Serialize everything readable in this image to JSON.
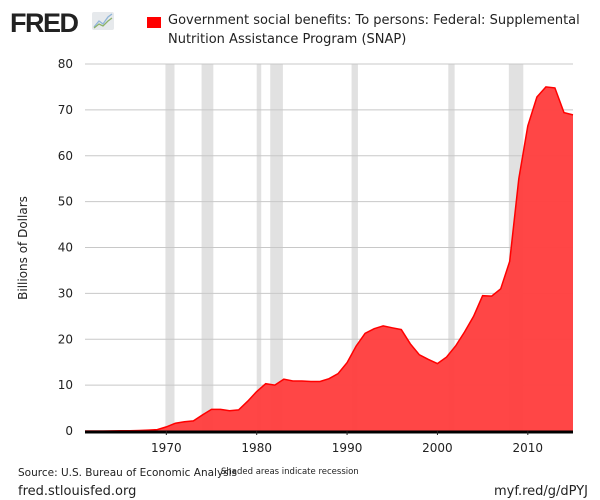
{
  "header": {
    "logo": "FRED",
    "logo_icon": "line-chart-icon"
  },
  "chart_data": {
    "type": "area",
    "series": [
      {
        "name": "Government social benefits: To persons: Federal: Supplemental Nutrition Assistance Program (SNAP)",
        "color": "#ff0000",
        "fill": "#ff4040"
      }
    ],
    "ylabel": "Billions of Dollars",
    "xlabel": "",
    "ylim": [
      0,
      80
    ],
    "xlim": [
      1961,
      2015
    ],
    "yticks": [
      "0",
      "10",
      "20",
      "30",
      "40",
      "50",
      "60",
      "70",
      "80"
    ],
    "xticks": [
      "1970",
      "1980",
      "1990",
      "2000",
      "2010"
    ],
    "grid": true,
    "legend": "top",
    "x": [
      1961,
      1962,
      1963,
      1964,
      1965,
      1966,
      1967,
      1968,
      1969,
      1970,
      1971,
      1972,
      1973,
      1974,
      1975,
      1976,
      1977,
      1978,
      1979,
      1980,
      1981,
      1982,
      1983,
      1984,
      1985,
      1986,
      1987,
      1988,
      1989,
      1990,
      1991,
      1992,
      1993,
      1994,
      1995,
      1996,
      1997,
      1998,
      1999,
      2000,
      2001,
      2002,
      2003,
      2004,
      2005,
      2006,
      2007,
      2008,
      2009,
      2010,
      2011,
      2012,
      2013,
      2014,
      2015
    ],
    "values": [
      0,
      0,
      0,
      0.03,
      0.04,
      0.07,
      0.1,
      0.2,
      0.3,
      0.9,
      1.7,
      2.0,
      2.2,
      3.5,
      4.7,
      4.7,
      4.4,
      4.6,
      6.5,
      8.6,
      10.3,
      10.0,
      11.3,
      10.9,
      10.9,
      10.8,
      10.8,
      11.4,
      12.5,
      14.9,
      18.5,
      21.3,
      22.3,
      22.9,
      22.5,
      22.1,
      19.0,
      16.6,
      15.6,
      14.7,
      16.1,
      18.5,
      21.6,
      25.0,
      29.5,
      29.4,
      31.0,
      37.0,
      55.0,
      66.5,
      72.8,
      75.0,
      74.8,
      69.4,
      68.9
    ],
    "recessions": [
      [
        1969.9,
        1970.9
      ],
      [
        1973.9,
        1975.2
      ],
      [
        1980.0,
        1980.5
      ],
      [
        1981.5,
        1982.9
      ],
      [
        1990.5,
        1991.2
      ],
      [
        2001.2,
        2001.9
      ],
      [
        2007.9,
        2009.5
      ]
    ],
    "recession_note": "Shaded areas indicate recession"
  },
  "footer": {
    "source": "Source: U.S. Bureau of Economic Analysis",
    "site": "fred.stlouisfed.org",
    "short_url": "myf.red/g/dPYJ"
  }
}
